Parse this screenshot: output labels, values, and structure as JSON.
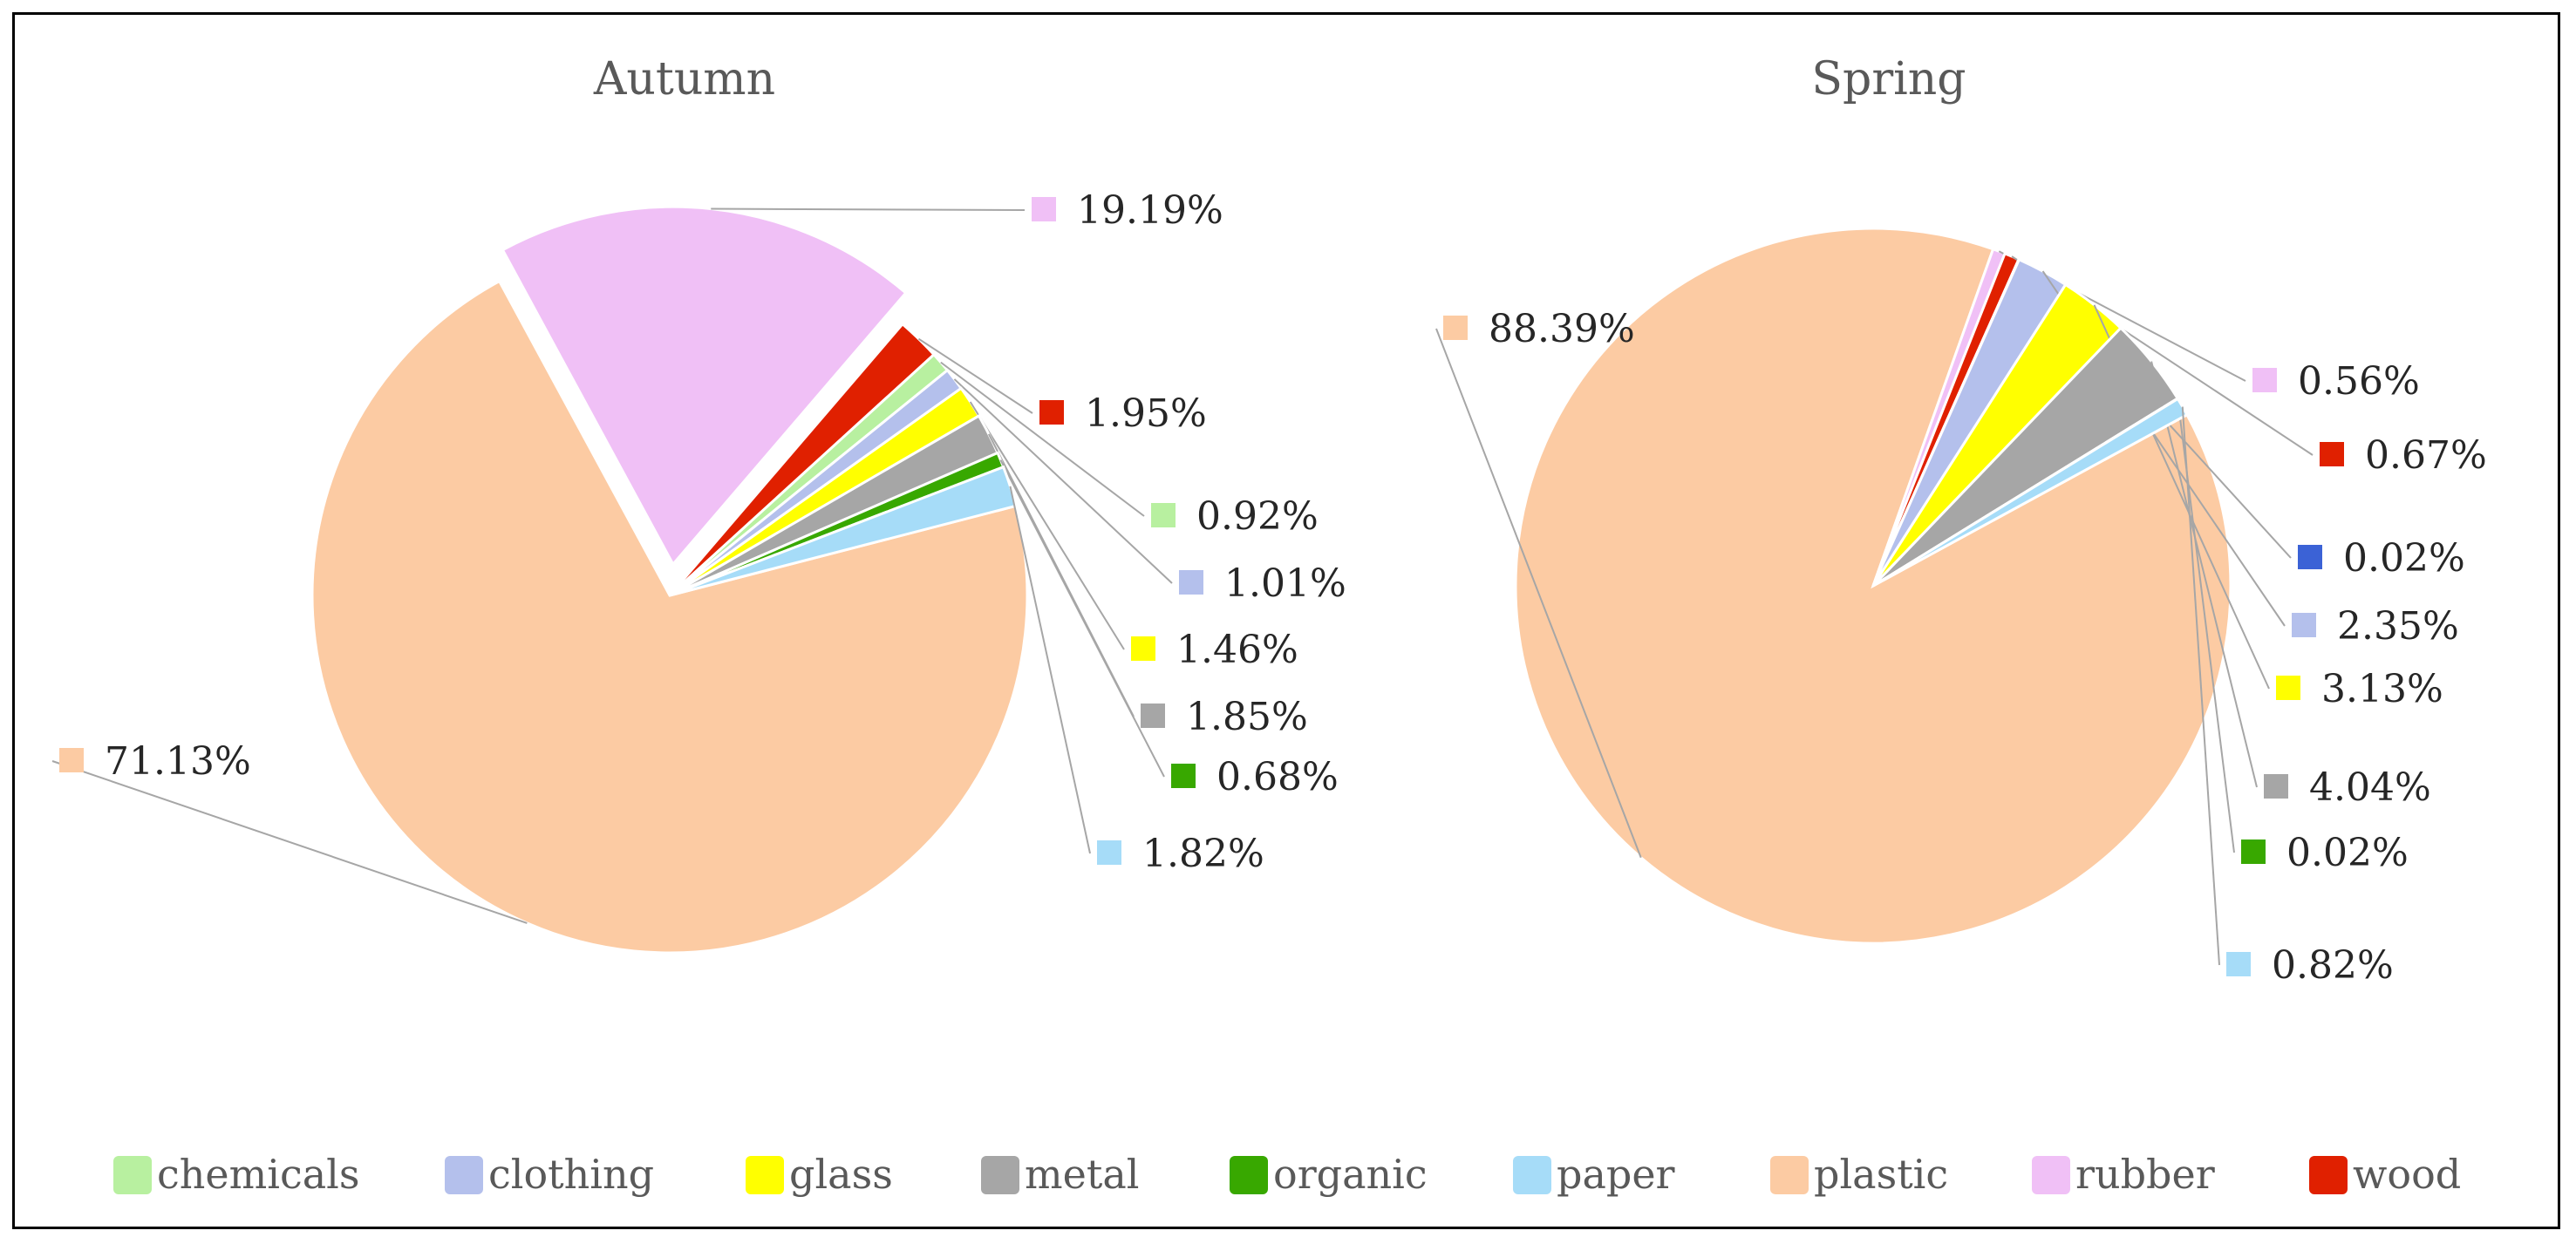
{
  "chart_data": [
    {
      "type": "pie",
      "title": "Autumn",
      "slices": [
        {
          "category": "plastic",
          "value": 71.13,
          "label": "71.13%"
        },
        {
          "category": "rubber",
          "value": 19.19,
          "label": "19.19%"
        },
        {
          "category": "wood",
          "value": 1.95,
          "label": "1.95%"
        },
        {
          "category": "chemicals",
          "value": 0.92,
          "label": "0.92%"
        },
        {
          "category": "clothing",
          "value": 1.01,
          "label": "1.01%"
        },
        {
          "category": "glass",
          "value": 1.46,
          "label": "1.46%"
        },
        {
          "category": "metal",
          "value": 1.85,
          "label": "1.85%"
        },
        {
          "category": "organic",
          "value": 0.68,
          "label": "0.68%"
        },
        {
          "category": "paper",
          "value": 1.82,
          "label": "1.82%"
        }
      ]
    },
    {
      "type": "pie",
      "title": "Spring",
      "slices": [
        {
          "category": "plastic",
          "value": 88.39,
          "label": "88.39%"
        },
        {
          "category": "rubber",
          "value": 0.56,
          "label": "0.56%"
        },
        {
          "category": "wood",
          "value": 0.67,
          "label": "0.67%"
        },
        {
          "category": "chemicals",
          "value": 0.02,
          "label": "0.02%"
        },
        {
          "category": "clothing",
          "value": 2.35,
          "label": "2.35%"
        },
        {
          "category": "glass",
          "value": 3.13,
          "label": "3.13%"
        },
        {
          "category": "metal",
          "value": 4.04,
          "label": "4.04%"
        },
        {
          "category": "organic",
          "value": 0.02,
          "label": "0.02%"
        },
        {
          "category": "paper",
          "value": 0.82,
          "label": "0.82%"
        }
      ]
    }
  ],
  "legend": {
    "placement": "bottom",
    "entries": [
      {
        "name": "chemicals",
        "color": "#b8f0a0"
      },
      {
        "name": "clothing",
        "color": "#b4c0ec"
      },
      {
        "name": "glass",
        "color": "#ffff00"
      },
      {
        "name": "metal",
        "color": "#a6a6a6"
      },
      {
        "name": "organic",
        "color": "#38a800"
      },
      {
        "name": "paper",
        "color": "#a6dcf8"
      },
      {
        "name": "plastic",
        "color": "#fccba3"
      },
      {
        "name": "rubber",
        "color": "#f0c0f6"
      },
      {
        "name": "wood",
        "color": "#e02000"
      }
    ]
  },
  "label_overrides": {
    "Spring": {
      "chemicals": "#3b62d6"
    }
  }
}
